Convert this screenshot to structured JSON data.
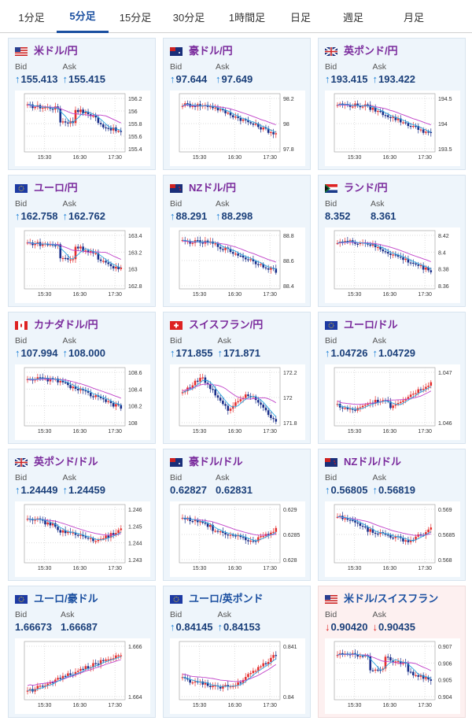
{
  "tabs": [
    {
      "label": "1分足",
      "active": false
    },
    {
      "label": "5分足",
      "active": true
    },
    {
      "label": "15分足",
      "active": false
    },
    {
      "label": "30分足",
      "active": false
    },
    {
      "label": "1時間足",
      "active": false
    },
    {
      "label": "日足",
      "active": false
    },
    {
      "label": "週足",
      "active": false
    },
    {
      "label": "月足",
      "active": false
    }
  ],
  "bid_label": "Bid",
  "ask_label": "Ask",
  "cards": [
    {
      "title": "米ドル/円",
      "flag": "us-jp",
      "title_color": "purple",
      "dir": "up",
      "bid": "155.413",
      "ask": "155.415",
      "xlabels": [
        "15:30",
        "16:30",
        "17:30"
      ],
      "ylabels": [
        "156.2",
        "156",
        "155.8",
        "155.6",
        "155.4"
      ],
      "shape": "down1"
    },
    {
      "title": "豪ドル/円",
      "flag": "au-jp",
      "title_color": "purple",
      "dir": "up",
      "bid": "97.644",
      "ask": "97.649",
      "xlabels": [
        "15:30",
        "16:30",
        "17:30"
      ],
      "ylabels": [
        "98.2",
        "98",
        "97.8"
      ],
      "shape": "down2"
    },
    {
      "title": "英ポンド/円",
      "flag": "gb-jp",
      "title_color": "purple",
      "dir": "up",
      "bid": "193.415",
      "ask": "193.422",
      "xlabels": [
        "15:30",
        "16:30",
        "17:30"
      ],
      "ylabels": [
        "194.5",
        "194",
        "193.5"
      ],
      "shape": "down2"
    },
    {
      "title": "ユーロ/円",
      "flag": "eu-jp",
      "title_color": "purple",
      "dir": "up",
      "bid": "162.758",
      "ask": "162.762",
      "xlabels": [
        "15:30",
        "16:30",
        "17:30"
      ],
      "ylabels": [
        "163.4",
        "163.2",
        "163",
        "162.8"
      ],
      "shape": "down1"
    },
    {
      "title": "NZドル/円",
      "flag": "nz-jp",
      "title_color": "purple",
      "dir": "up",
      "bid": "88.291",
      "ask": "88.298",
      "xlabels": [
        "15:30",
        "16:30",
        "17:30"
      ],
      "ylabels": [
        "88.8",
        "88.6",
        "88.4"
      ],
      "shape": "down2"
    },
    {
      "title": "ランド/円",
      "flag": "za-jp",
      "title_color": "purple",
      "dir": "none",
      "bid": "8.352",
      "ask": "8.361",
      "xlabels": [
        "15:30",
        "16:30",
        "17:30"
      ],
      "ylabels": [
        "8.42",
        "8.4",
        "8.38",
        "8.36"
      ],
      "shape": "down2"
    },
    {
      "title": "カナダドル/円",
      "flag": "ca-jp",
      "title_color": "purple",
      "dir": "up",
      "bid": "107.994",
      "ask": "108.000",
      "xlabels": [
        "15:30",
        "16:30",
        "17:30"
      ],
      "ylabels": [
        "108.6",
        "108.4",
        "108.2",
        "108"
      ],
      "shape": "down2"
    },
    {
      "title": "スイスフラン/円",
      "flag": "ch-jp",
      "title_color": "purple",
      "dir": "up",
      "bid": "171.855",
      "ask": "171.871",
      "xlabels": [
        "15:30",
        "16:30",
        "17:30"
      ],
      "ylabels": [
        "172.2",
        "172",
        "171.8"
      ],
      "shape": "vdown"
    },
    {
      "title": "ユーロ/ドル",
      "flag": "eu-us",
      "title_color": "purple",
      "dir": "up",
      "bid": "1.04726",
      "ask": "1.04729",
      "xlabels": [
        "15:30",
        "16:30",
        "17:30"
      ],
      "ylabels": [
        "1.047",
        "1.046"
      ],
      "shape": "up1"
    },
    {
      "title": "英ポンド/ドル",
      "flag": "gb-us",
      "title_color": "purple",
      "dir": "up",
      "bid": "1.24449",
      "ask": "1.24459",
      "xlabels": [
        "15:30",
        "16:30",
        "17:30"
      ],
      "ylabels": [
        "1.246",
        "1.245",
        "1.244",
        "1.243"
      ],
      "shape": "dip"
    },
    {
      "title": "豪ドル/ドル",
      "flag": "au-us",
      "title_color": "purple",
      "dir": "none",
      "bid": "0.62827",
      "ask": "0.62831",
      "xlabels": [
        "15:30",
        "16:30",
        "17:30"
      ],
      "ylabels": [
        "0.629",
        "0.6285",
        "0.628"
      ],
      "shape": "dip"
    },
    {
      "title": "NZドル/ドル",
      "flag": "nz-us",
      "title_color": "purple",
      "dir": "up",
      "bid": "0.56805",
      "ask": "0.56819",
      "xlabels": [
        "15:30",
        "16:30",
        "17:30"
      ],
      "ylabels": [
        "0.569",
        "0.5685",
        "0.568"
      ],
      "shape": "dip"
    },
    {
      "title": "ユーロ/豪ドル",
      "flag": "eu-au",
      "title_color": "blue",
      "dir": "none",
      "bid": "1.66673",
      "ask": "1.66687",
      "xlabels": [
        "15:30",
        "16:30",
        "17:30"
      ],
      "ylabels": [
        "1.666",
        "1.664"
      ],
      "shape": "up2"
    },
    {
      "title": "ユーロ/英ポンド",
      "flag": "eu-gb",
      "title_color": "blue",
      "dir": "up",
      "bid": "0.84145",
      "ask": "0.84153",
      "xlabels": [
        "15:30",
        "16:30",
        "17:30"
      ],
      "ylabels": [
        "0.841",
        "0.84"
      ],
      "shape": "up3"
    },
    {
      "title": "米ドル/スイスフラン",
      "flag": "us-ch",
      "title_color": "blue",
      "dir": "down",
      "bid": "0.90420",
      "ask": "0.90435",
      "xlabels": [
        "15:30",
        "16:30",
        "17:30"
      ],
      "ylabels": [
        "0.907",
        "0.906",
        "0.905",
        "0.904"
      ],
      "shape": "down1",
      "pink": true
    }
  ],
  "colors": {
    "up_candle": "#e53030",
    "down_candle": "#1a2f8a",
    "ma_short": "#2aa7e0",
    "ma_long": "#c040c8",
    "accent": "#1a4fa0"
  }
}
